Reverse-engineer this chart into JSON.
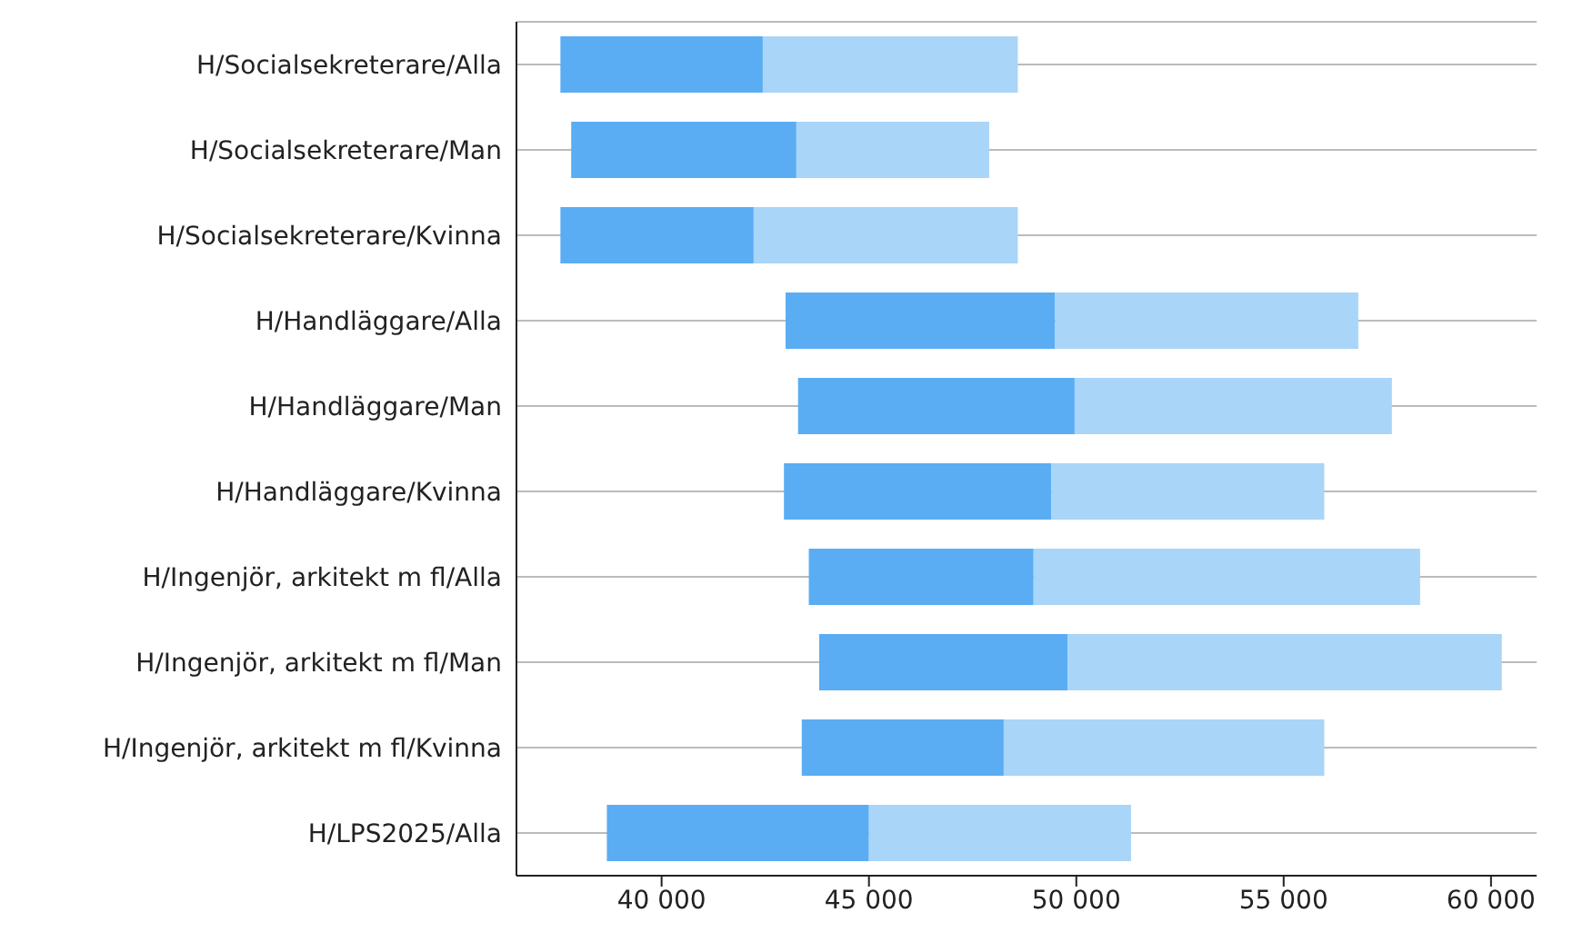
{
  "chart_data": {
    "type": "bar",
    "orientation": "horizontal",
    "categories": [
      "H/Socialsekreterare/Alla",
      "H/Socialsekreterare/Man",
      "H/Socialsekreterare/Kvinna",
      "H/Handläggare/Alla",
      "H/Handläggare/Man",
      "H/Handläggare/Kvinna",
      "H/Ingenjör, arkitekt m fl/Alla",
      "H/Ingenjör, arkitekt m fl/Man",
      "H/Ingenjör, arkitekt m fl/Kvinna",
      "H/LPS2025/Alla"
    ],
    "series": [
      {
        "color": "#5aadf3",
        "base": [
          37560,
          37820,
          37560,
          42990,
          43290,
          42950,
          43550,
          43800,
          43380,
          38680
        ],
        "values": [
          4880,
          5430,
          4660,
          6500,
          6670,
          6450,
          5420,
          5990,
          4870,
          6320
        ]
      },
      {
        "color": "#a9d5f8",
        "base": [
          42440,
          43250,
          42220,
          49490,
          49960,
          49400,
          48970,
          49790,
          48250,
          45000
        ],
        "values": [
          6150,
          4650,
          6370,
          7310,
          7650,
          6580,
          9320,
          10470,
          7730,
          6320
        ]
      }
    ],
    "xlim": [
      36500,
      61100
    ],
    "xticks": [
      {
        "value": 40000,
        "label": "40 000"
      },
      {
        "value": 45000,
        "label": "45 000"
      },
      {
        "value": 50000,
        "label": "50 000"
      },
      {
        "value": 55000,
        "label": "55 000"
      },
      {
        "value": 60000,
        "label": "60 000"
      }
    ],
    "grid": "y"
  }
}
